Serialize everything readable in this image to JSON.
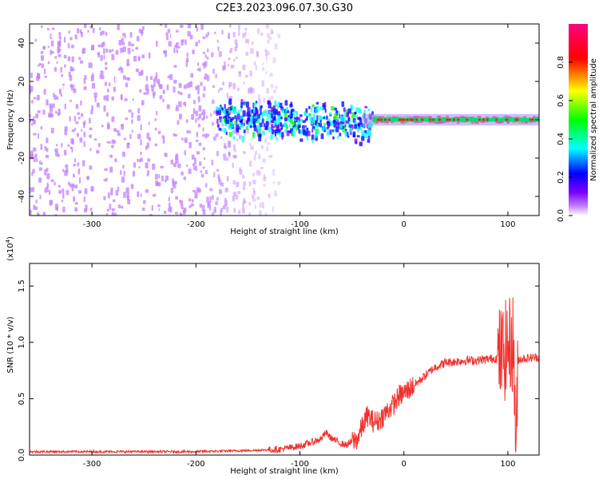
{
  "title": "C2E3.2023.096.07.30.G30",
  "colors": {
    "snr_line": "#f0322c",
    "background": "#ffffff",
    "axes": "#000000"
  },
  "chart_data": [
    {
      "type": "heatmap",
      "xlabel": "Height of straight line (km)",
      "ylabel": "Frequency (Hz)",
      "xlim": [
        -360,
        130
      ],
      "ylim": [
        -50,
        50
      ],
      "xticks": [
        -300,
        -200,
        -100,
        0,
        100
      ],
      "yticks": [
        -40,
        -20,
        0,
        20,
        40
      ],
      "colorbar": {
        "label": "Normalized spectral amplitude",
        "range": [
          0,
          1
        ],
        "ticks": [
          "0.0",
          "0.2",
          "0.4",
          "0.6",
          "0.8"
        ],
        "colormap": [
          "#ffffff",
          "#7f00ff",
          "#0000ff",
          "#00ffff",
          "#00ff00",
          "#ffff00",
          "#ff0000",
          "#ff0080"
        ]
      },
      "features": [
        {
          "x_range": [
            -360,
            -120
          ],
          "freq_range": [
            -50,
            50
          ],
          "level": 0.08
        },
        {
          "x_range": [
            -180,
            -30
          ],
          "freq_range": [
            -12,
            10
          ],
          "level": 0.35
        },
        {
          "x_range": [
            -30,
            130
          ],
          "freq_range": [
            -3,
            3
          ],
          "level": 0.9
        }
      ]
    },
    {
      "type": "line",
      "xlabel": "Height of straight line (km)",
      "ylabel": "SNR (10 * v/v)",
      "scale_label": "(x10",
      "scale_exp": "4",
      "scale_close": ")",
      "xlim": [
        -360,
        130
      ],
      "ylim": [
        0,
        1.7
      ],
      "xticks": [
        -300,
        -200,
        -100,
        0,
        100
      ],
      "yticks": [
        "0.0",
        "0.5",
        "1.0",
        "1.5"
      ],
      "series": [
        {
          "x": [
            -360,
            -300,
            -200,
            -150,
            -120,
            -100,
            -80,
            -75,
            -70,
            -60,
            -55,
            -50,
            -45,
            -40,
            -35,
            -30,
            -25,
            -20,
            -15,
            -10,
            -5,
            0,
            10,
            20,
            30,
            40,
            50,
            60,
            70,
            80,
            90,
            95,
            100,
            105,
            108,
            110,
            120,
            130
          ],
          "y": [
            0.03,
            0.03,
            0.03,
            0.04,
            0.05,
            0.08,
            0.14,
            0.2,
            0.15,
            0.1,
            0.09,
            0.12,
            0.14,
            0.25,
            0.35,
            0.3,
            0.3,
            0.35,
            0.4,
            0.45,
            0.52,
            0.55,
            0.62,
            0.7,
            0.78,
            0.82,
            0.83,
            0.84,
            0.84,
            0.85,
            0.86,
            0.9,
            0.95,
            1.0,
            0.1,
            0.85,
            0.86,
            0.87
          ]
        }
      ]
    }
  ]
}
